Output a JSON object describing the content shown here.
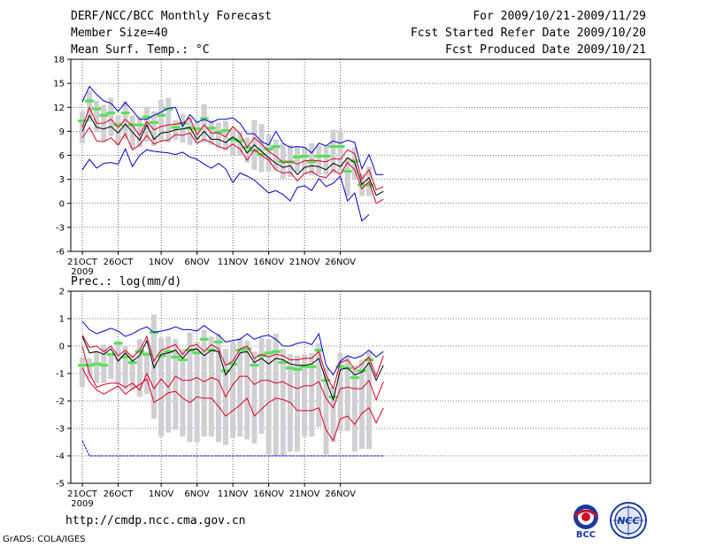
{
  "header": {
    "title": "DERF/NCC/BCC Monthly Forecast",
    "member_size": "Member Size=40",
    "variable": "Mean Surf. Temp.: °C",
    "period": "For 2009/10/21-2009/11/29",
    "started": "Fcst Started Refer Date 2009/10/20",
    "produced": "Fcst Produced Date 2009/10/21"
  },
  "footer": {
    "url": "http://cmdp.ncc.cma.gov.cn",
    "credit": "GrADS: COLA/IGES",
    "logo_bcc": "BCC",
    "logo_ncc": "NCC"
  },
  "colors": {
    "box": "#d0d0d4",
    "median": "#55e055",
    "mean": "#000000",
    "sd": "#dd0022",
    "range": "#0000cc",
    "grid": "#000000"
  },
  "chart_data": [
    {
      "type": "box-ensemble",
      "title": "Mean Surf. Temp.: °C",
      "ylim": [
        -6,
        18
      ],
      "yticks": [
        -6,
        -3,
        0,
        3,
        6,
        9,
        12,
        15,
        18
      ],
      "xtick_labels": [
        "21OCT",
        "26OCT",
        "1NOV",
        "6NOV",
        "11NOV",
        "16NOV",
        "21NOV",
        "26NOV"
      ],
      "xtick_days": [
        0,
        5,
        11,
        16,
        21,
        26,
        31,
        36
      ],
      "year_label": "2009",
      "days": 40,
      "series": [
        {
          "name": "mean",
          "values": [
            9.0,
            11.0,
            9.5,
            9.3,
            9.6,
            8.8,
            9.9,
            8.9,
            7.9,
            9.8,
            8.0,
            8.8,
            8.9,
            9.2,
            9.3,
            9.5,
            8.0,
            9.0,
            8.0,
            8.0,
            7.6,
            8.3,
            7.6,
            6.3,
            7.3,
            6.5,
            5.7,
            5.0,
            4.5,
            4.7,
            3.6,
            4.5,
            4.7,
            4.6,
            4.2,
            5.0,
            4.6,
            5.7,
            5.1,
            2.4,
            3.2,
            1.0,
            1.5
          ]
        },
        {
          "name": "mean+sd",
          "values": [
            9.5,
            12.0,
            10.0,
            10.0,
            10.5,
            9.5,
            10.5,
            9.7,
            8.5,
            10.2,
            9.2,
            9.6,
            9.8,
            9.9,
            10.0,
            10.7,
            8.6,
            9.8,
            8.8,
            8.8,
            8.3,
            9.6,
            8.7,
            7.0,
            8.2,
            7.4,
            6.5,
            5.9,
            5.1,
            5.2,
            4.9,
            5.3,
            5.4,
            5.3,
            5.2,
            5.6,
            5.5,
            6.7,
            6.2,
            3.0,
            4.2,
            1.7,
            2.1
          ]
        },
        {
          "name": "mean-sd",
          "values": [
            8.2,
            9.5,
            7.8,
            7.7,
            8.2,
            7.3,
            8.7,
            6.7,
            7.3,
            8.5,
            7.4,
            7.8,
            7.9,
            8.6,
            8.5,
            8.8,
            7.5,
            8.0,
            7.6,
            7.1,
            6.8,
            7.4,
            6.8,
            5.4,
            6.7,
            6.0,
            5.4,
            4.2,
            3.8,
            3.9,
            2.8,
            3.7,
            4.0,
            3.4,
            3.2,
            4.2,
            3.6,
            5.1,
            4.2,
            1.8,
            2.7,
            0.0,
            0.5
          ]
        },
        {
          "name": "max",
          "values": [
            12.7,
            14.6,
            13.6,
            12.8,
            12.5,
            11.5,
            12.6,
            11.6,
            10.5,
            10.5,
            11.0,
            11.4,
            11.9,
            12.0,
            9.6,
            11.1,
            10.1,
            10.5,
            10.1,
            10.5,
            10.5,
            10.7,
            10.0,
            8.7,
            8.7,
            7.7,
            7.3,
            9.0,
            7.5,
            7.0,
            7.1,
            7.0,
            6.3,
            7.5,
            7.2,
            7.8,
            7.5,
            7.9,
            7.6,
            4.3,
            6.1,
            3.6,
            3.6
          ]
        },
        {
          "name": "min",
          "values": [
            4.2,
            5.5,
            4.4,
            5.0,
            5.1,
            4.9,
            6.8,
            4.6,
            6.0,
            6.7,
            6.5,
            6.4,
            6.3,
            6.1,
            6.4,
            5.8,
            5.5,
            4.9,
            4.4,
            5.0,
            4.3,
            2.6,
            3.8,
            3.4,
            2.9,
            2.1,
            1.3,
            1.6,
            1.1,
            0.3,
            2.0,
            2.2,
            1.6,
            3.1,
            2.1,
            2.5,
            3.4,
            0.3,
            1.3,
            -2.2,
            -1.4
          ]
        },
        {
          "name": "median",
          "values": [
            10.3,
            12.8,
            11.8,
            11.0,
            11.3,
            9.8,
            11.3,
            9.8,
            9.8,
            10.8,
            10.1,
            11.0,
            11.8,
            9.5,
            10.0,
            9.4,
            9.3,
            10.6,
            9.4,
            8.9,
            9.1,
            8.0,
            7.8,
            7.0,
            6.6,
            6.1,
            6.8,
            7.1,
            5.2,
            5.2,
            5.8,
            5.9,
            5.2,
            5.9,
            5.9,
            7.1,
            7.1,
            4.0,
            5.3,
            2.3,
            2.3
          ]
        },
        {
          "name": "box_top",
          "values": [
            11.5,
            14.1,
            12.8,
            12.3,
            13.2,
            11.0,
            12.8,
            11.0,
            10.8,
            12.1,
            11.5,
            12.9,
            13.2,
            10.4,
            11.2,
            10.6,
            10.4,
            12.4,
            10.4,
            10.1,
            10.3,
            9.3,
            8.9,
            8.2,
            10.4,
            9.9,
            8.6,
            8.0,
            7.5,
            7.3,
            7.1,
            7.1,
            7.5,
            7.2,
            7.2,
            9.2,
            9.2,
            5.7,
            7.0,
            3.7,
            4.6
          ]
        },
        {
          "name": "box_bottom",
          "values": [
            7.5,
            10.2,
            8.9,
            7.8,
            8.4,
            7.2,
            8.0,
            6.9,
            7.0,
            7.7,
            7.2,
            7.8,
            7.6,
            7.9,
            7.6,
            7.3,
            7.5,
            7.6,
            7.3,
            6.9,
            6.6,
            5.9,
            5.9,
            5.1,
            4.2,
            3.9,
            3.9,
            4.1,
            3.1,
            3.3,
            3.9,
            3.6,
            3.5,
            3.6,
            3.6,
            3.7,
            3.7,
            0.9,
            3.0,
            0.9,
            0.9
          ]
        }
      ]
    },
    {
      "type": "box-ensemble",
      "title": "Prec.: log(mm/d)",
      "ylim": [
        -5,
        2
      ],
      "yticks": [
        -5,
        -4,
        -3,
        -2,
        -1,
        0,
        1,
        2
      ],
      "xtick_labels": [
        "21OCT",
        "26OCT",
        "1NOV",
        "6NOV",
        "11NOV",
        "16NOV",
        "21NOV",
        "26NOV"
      ],
      "xtick_days": [
        0,
        5,
        11,
        16,
        21,
        26,
        31,
        36
      ],
      "year_label": "2009",
      "days": 40,
      "series": [
        {
          "name": "mean",
          "values": [
            0.35,
            -0.25,
            -0.2,
            -0.3,
            -0.1,
            -0.55,
            -0.25,
            -0.55,
            -0.35,
            0.2,
            -0.8,
            -0.3,
            -0.25,
            -0.15,
            -0.45,
            -0.15,
            -0.1,
            -0.35,
            -0.15,
            -0.2,
            -1.05,
            -0.7,
            -0.25,
            -0.2,
            -0.6,
            -0.45,
            -0.65,
            -0.45,
            -0.5,
            -0.65,
            -0.7,
            -0.7,
            -0.65,
            -0.45,
            -1.25,
            -1.95,
            -0.85,
            -0.8,
            -1.05,
            -0.95,
            -0.6,
            -1.25,
            -0.7
          ]
        },
        {
          "name": "mean+sd",
          "values": [
            0.4,
            -0.05,
            0.0,
            -0.2,
            0.0,
            -0.35,
            -0.15,
            -0.4,
            -0.15,
            0.35,
            -0.55,
            -0.15,
            -0.05,
            0.05,
            -0.3,
            0.0,
            0.05,
            -0.2,
            0.05,
            -0.1,
            -0.7,
            -0.55,
            -0.1,
            0.0,
            -0.45,
            -0.3,
            -0.4,
            -0.3,
            -0.35,
            -0.5,
            -0.5,
            -0.45,
            -0.45,
            -0.2,
            -1.05,
            -1.55,
            -0.6,
            -0.5,
            -0.85,
            -0.65,
            -0.4,
            -1.1,
            -0.35
          ]
        },
        {
          "name": "mean-sd",
          "values": [
            0.0,
            -1.0,
            -1.5,
            -1.4,
            -1.35,
            -1.35,
            -1.5,
            -1.35,
            -1.6,
            -1.0,
            -1.55,
            -1.2,
            -1.5,
            -1.1,
            -1.25,
            -1.25,
            -1.15,
            -1.3,
            -1.15,
            -1.25,
            -1.85,
            -1.4,
            -1.1,
            -1.1,
            -1.4,
            -1.25,
            -1.25,
            -1.35,
            -1.3,
            -1.45,
            -1.55,
            -1.45,
            -1.45,
            -1.3,
            -1.9,
            -2.25,
            -1.55,
            -1.5,
            -1.55,
            -1.55,
            -1.25,
            -1.95,
            -1.3
          ]
        },
        {
          "name": "max",
          "values": [
            0.9,
            0.6,
            0.45,
            0.55,
            0.65,
            0.55,
            0.35,
            0.45,
            0.6,
            0.7,
            0.5,
            0.55,
            0.6,
            0.7,
            0.6,
            0.6,
            0.55,
            0.75,
            0.55,
            0.4,
            0.15,
            0.2,
            0.25,
            0.45,
            0.25,
            0.35,
            0.4,
            0.25,
            0.0,
            0.0,
            0.1,
            0.15,
            0.05,
            0.45,
            -0.7,
            -1.05,
            -0.55,
            -0.35,
            -0.45,
            -0.35,
            -0.15,
            -0.4,
            -0.2
          ]
        },
        {
          "name": "min",
          "values": [
            -3.45,
            -4.0,
            -4.0,
            -4.0,
            -4.0,
            -4.0,
            -4.0,
            -4.0,
            -4.0,
            -4.0,
            -4.0,
            -4.0,
            -4.0,
            -4.0,
            -4.0,
            -4.0,
            -4.0,
            -4.0,
            -4.0,
            -4.0,
            -4.0,
            -4.0,
            -4.0,
            -4.0,
            -4.0,
            -4.0,
            -4.0,
            -4.0,
            -4.0,
            -4.0,
            -4.0,
            -4.0,
            -4.0,
            -4.0,
            -4.0,
            -4.0,
            -4.0,
            -4.0,
            -4.0,
            -4.0,
            -4.0,
            -4.0,
            -4.0
          ]
        },
        {
          "name": "min_curve",
          "values": [
            -0.8,
            -1.3,
            -1.6,
            -1.75,
            -1.6,
            -1.45,
            -1.75,
            -1.55,
            -1.4,
            -1.2,
            -2.05,
            -1.9,
            -1.7,
            -1.65,
            -1.9,
            -2.05,
            -1.85,
            -1.9,
            -1.9,
            -2.2,
            -2.55,
            -2.35,
            -2.15,
            -1.9,
            -2.55,
            -2.3,
            -2.05,
            -1.9,
            -1.95,
            -2.05,
            -2.35,
            -2.35,
            -2.35,
            -2.25,
            -3.05,
            -3.45,
            -2.65,
            -2.55,
            -2.85,
            -2.45,
            -2.25,
            -2.8,
            -2.25
          ]
        },
        {
          "name": "median",
          "values": [
            -0.7,
            -0.7,
            -0.65,
            -0.7,
            -0.3,
            0.1,
            -0.4,
            -0.6,
            -0.2,
            -0.3,
            0.5,
            -0.35,
            -0.2,
            -0.4,
            -0.5,
            -0.15,
            -0.25,
            0.25,
            -0.15,
            0.15,
            -0.9,
            -0.65,
            -0.15,
            -0.1,
            -0.7,
            -0.35,
            -0.25,
            -0.2,
            -0.6,
            -0.8,
            -0.85,
            -0.75,
            -0.75,
            -0.15,
            -1.25,
            -1.85,
            -0.75,
            -0.8,
            -1.15,
            -0.9,
            -0.5,
            -1.3,
            -0.35
          ]
        },
        {
          "name": "box_top",
          "values": [
            -0.4,
            -0.45,
            -0.2,
            0.05,
            -0.25,
            0.2,
            0.0,
            -0.35,
            0.25,
            -0.2,
            1.15,
            0.3,
            0.35,
            0.25,
            -0.1,
            0.5,
            0.15,
            0.6,
            0.35,
            0.45,
            -0.1,
            0.15,
            0.3,
            0.2,
            -0.2,
            0.3,
            0.25,
            0.45,
            -0.1,
            -0.3,
            -0.35,
            -0.3,
            -0.25,
            0.1,
            -0.8,
            -1.5,
            -0.25,
            -0.35,
            -0.7,
            -0.5,
            -0.2,
            -0.95,
            0.25
          ]
        },
        {
          "name": "box_bottom",
          "values": [
            -1.5,
            -1.2,
            -1.35,
            -1.35,
            -1.2,
            -1.4,
            -1.6,
            -1.6,
            -1.85,
            -1.75,
            -2.65,
            -3.3,
            -3.15,
            -3.05,
            -3.3,
            -3.5,
            -3.5,
            -3.3,
            -3.3,
            -3.5,
            -3.6,
            -3.35,
            -3.3,
            -3.4,
            -3.55,
            -3.2,
            -3.95,
            -4.0,
            -4.0,
            -3.85,
            -3.85,
            -3.3,
            -3.3,
            -2.95,
            -3.95,
            -3.5,
            -3.1,
            -3.1,
            -3.85,
            -3.75,
            -3.75,
            -3.45,
            -2.9
          ]
        }
      ]
    }
  ]
}
